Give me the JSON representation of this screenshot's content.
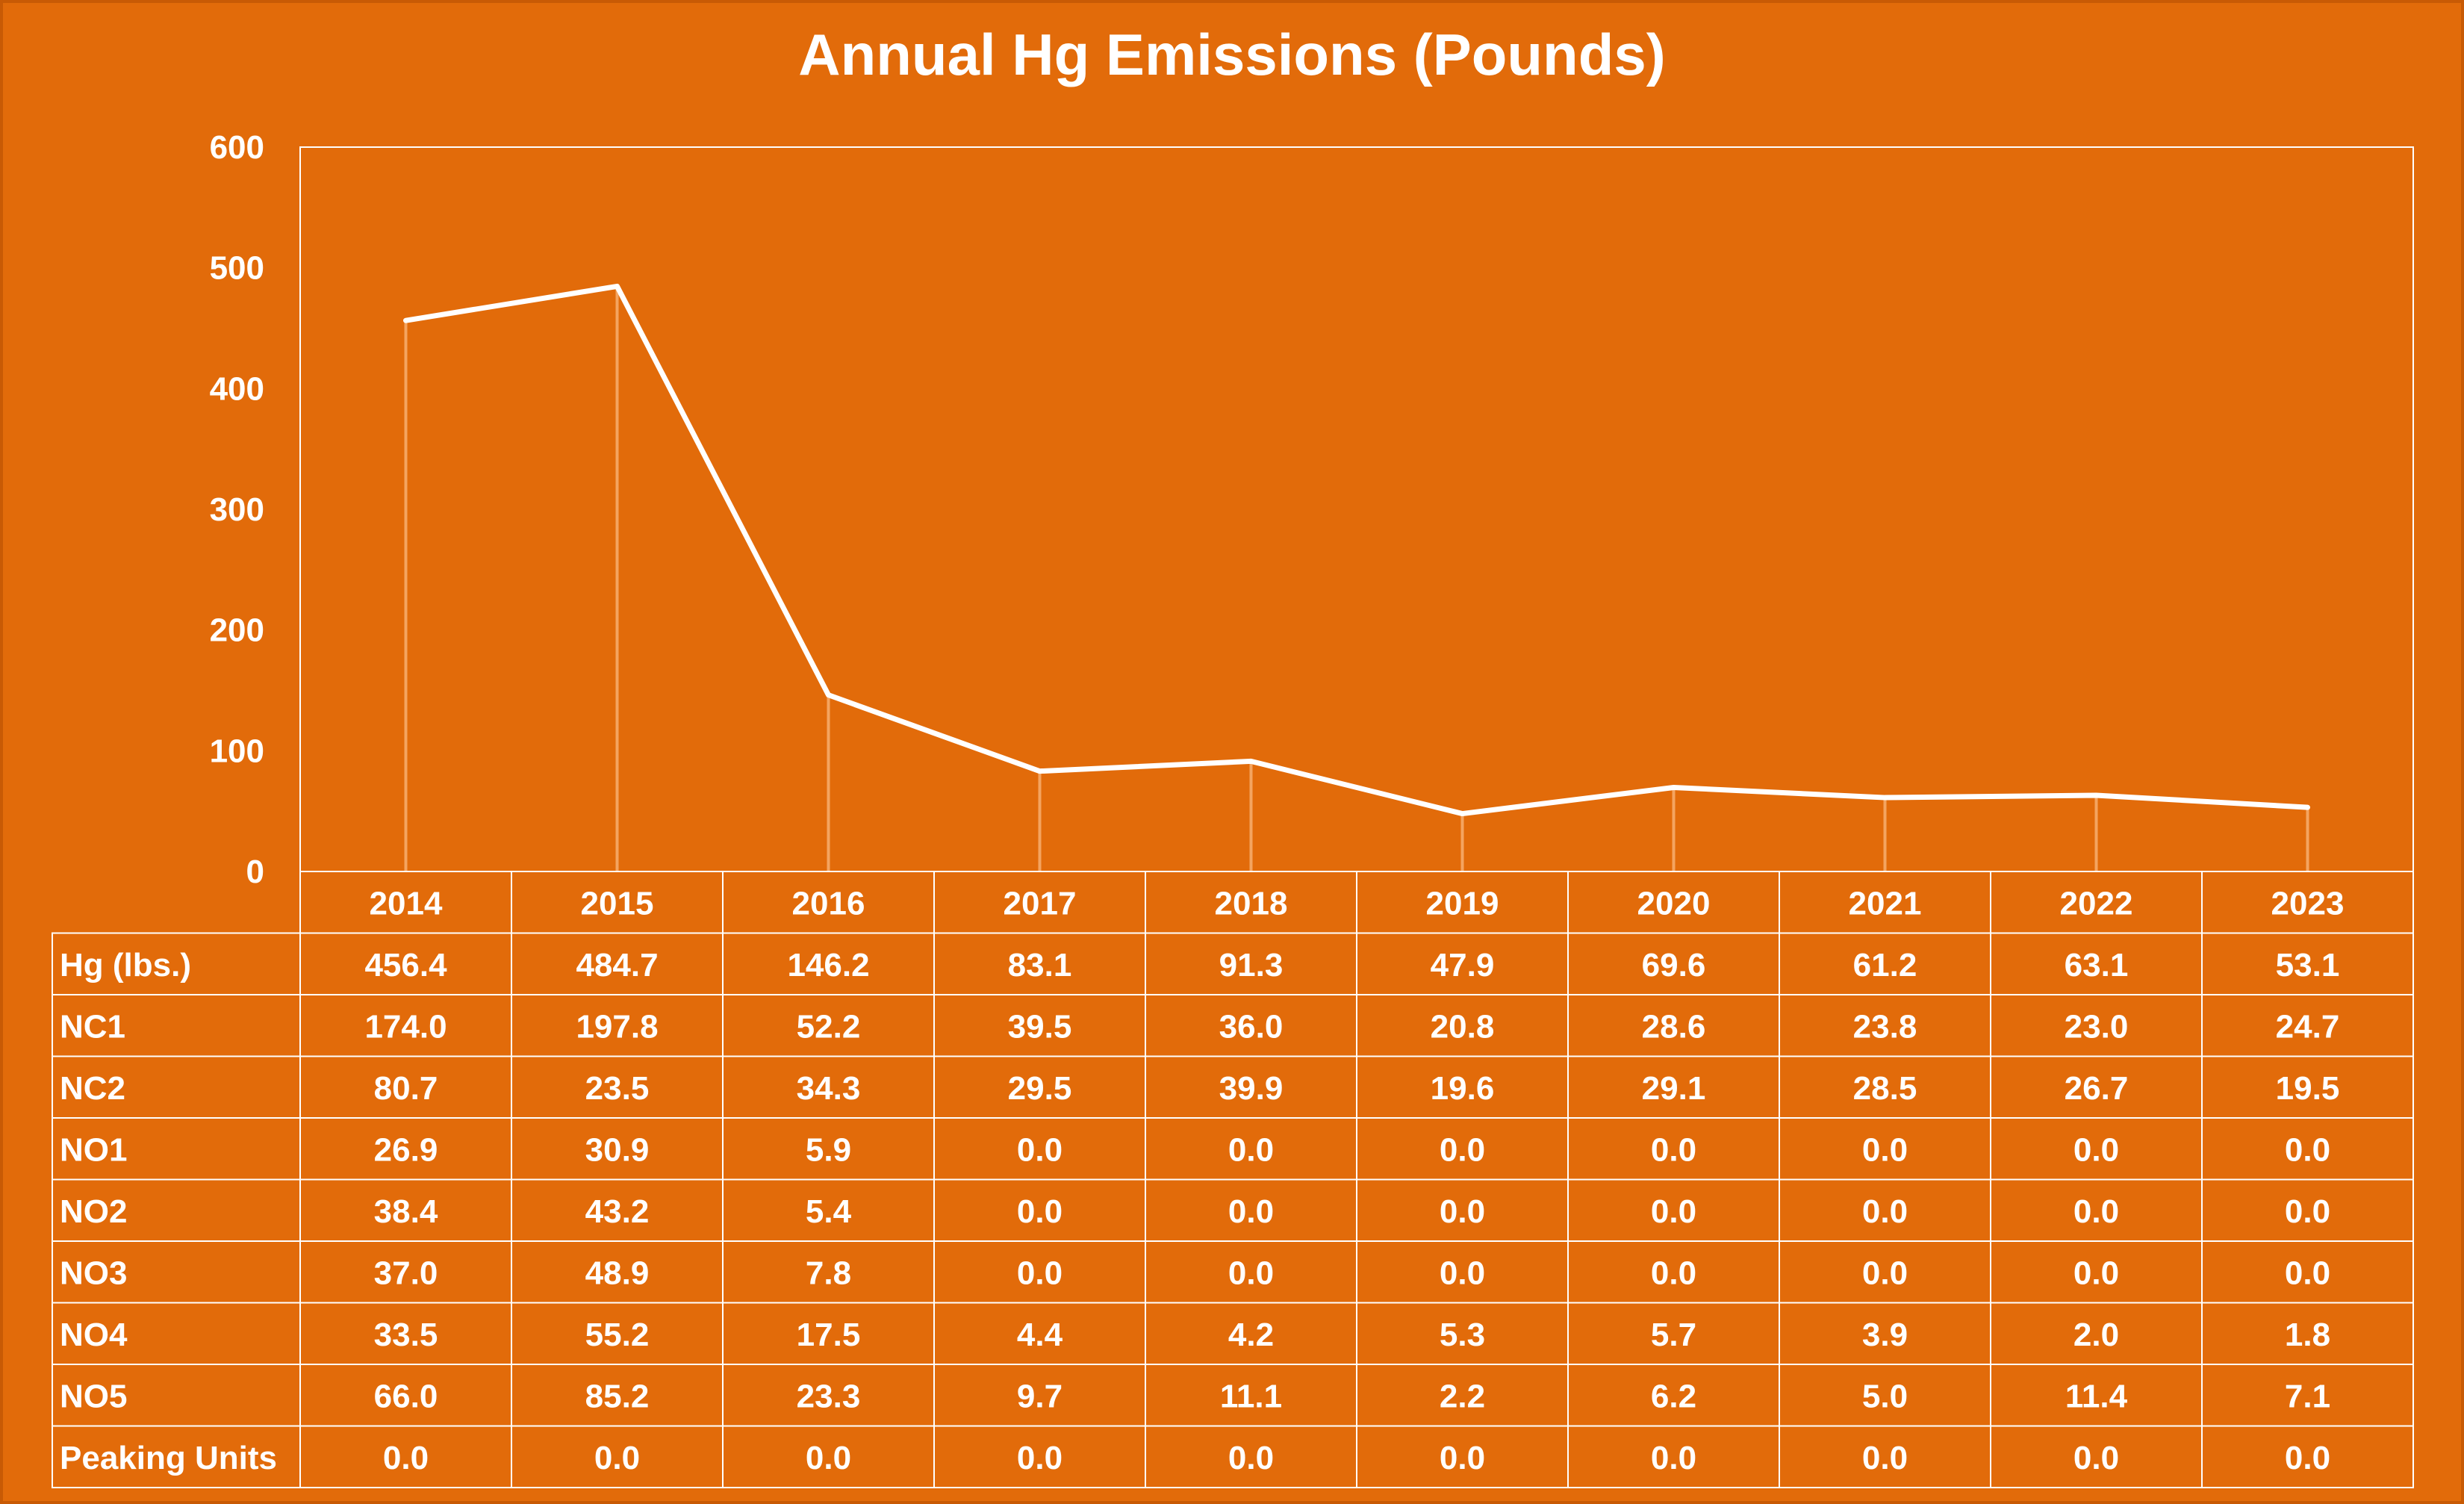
{
  "chart_data": {
    "type": "line",
    "title": "Annual Hg Emissions (Pounds)",
    "xlabel": "",
    "ylabel": "",
    "ylim": [
      0,
      600
    ],
    "yticks": [
      "0",
      "100",
      "200",
      "300",
      "400",
      "500",
      "600"
    ],
    "categories": [
      "2014",
      "2015",
      "2016",
      "2017",
      "2018",
      "2019",
      "2020",
      "2021",
      "2022",
      "2023"
    ],
    "series": [
      {
        "name": "Hg (lbs.)",
        "values": [
          456.4,
          484.7,
          146.2,
          83.1,
          91.3,
          47.9,
          69.6,
          61.2,
          63.1,
          53.1
        ]
      }
    ],
    "data_table": [
      {
        "label": "Hg (lbs.)",
        "values": [
          "456.4",
          "484.7",
          "146.2",
          "83.1",
          "91.3",
          "47.9",
          "69.6",
          "61.2",
          "63.1",
          "53.1"
        ]
      },
      {
        "label": "NC1",
        "values": [
          "174.0",
          "197.8",
          "52.2",
          "39.5",
          "36.0",
          "20.8",
          "28.6",
          "23.8",
          "23.0",
          "24.7"
        ]
      },
      {
        "label": "NC2",
        "values": [
          "80.7",
          "23.5",
          "34.3",
          "29.5",
          "39.9",
          "19.6",
          "29.1",
          "28.5",
          "26.7",
          "19.5"
        ]
      },
      {
        "label": "NO1",
        "values": [
          "26.9",
          "30.9",
          "5.9",
          "0.0",
          "0.0",
          "0.0",
          "0.0",
          "0.0",
          "0.0",
          "0.0"
        ]
      },
      {
        "label": "NO2",
        "values": [
          "38.4",
          "43.2",
          "5.4",
          "0.0",
          "0.0",
          "0.0",
          "0.0",
          "0.0",
          "0.0",
          "0.0"
        ]
      },
      {
        "label": "NO3",
        "values": [
          "37.0",
          "48.9",
          "7.8",
          "0.0",
          "0.0",
          "0.0",
          "0.0",
          "0.0",
          "0.0",
          "0.0"
        ]
      },
      {
        "label": "NO4",
        "values": [
          "33.5",
          "55.2",
          "17.5",
          "4.4",
          "4.2",
          "5.3",
          "5.7",
          "3.9",
          "2.0",
          "1.8"
        ]
      },
      {
        "label": "NO5",
        "values": [
          "66.0",
          "85.2",
          "23.3",
          "9.7",
          "11.1",
          "2.2",
          "6.2",
          "5.0",
          "11.4",
          "7.1"
        ]
      },
      {
        "label": "Peaking Units",
        "values": [
          "0.0",
          "0.0",
          "0.0",
          "0.0",
          "0.0",
          "0.0",
          "0.0",
          "0.0",
          "0.0",
          "0.0"
        ]
      }
    ],
    "grid": false,
    "drop_lines": true,
    "legend": "none",
    "colors": {
      "background": "#e26b0a",
      "line": "#ffffff",
      "drop_line": "#f4a460",
      "border": "#ffffff"
    }
  }
}
